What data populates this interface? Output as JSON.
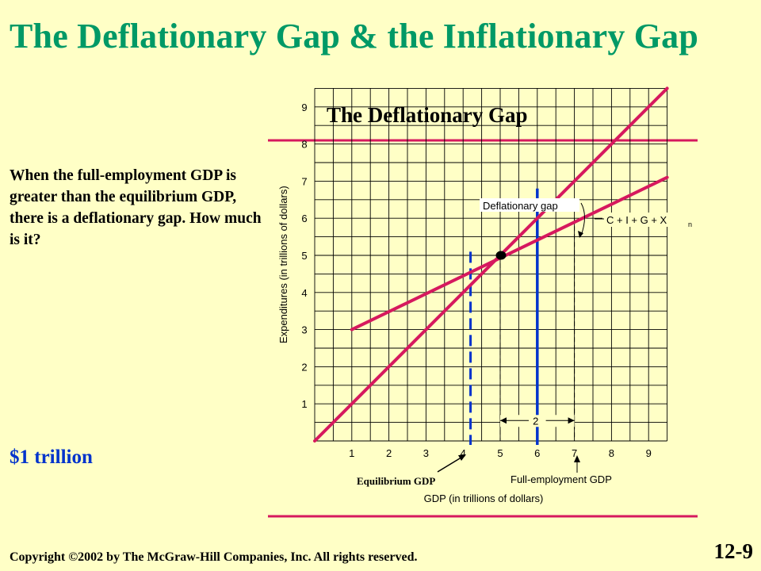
{
  "slide": {
    "title": "The Deflationary Gap & the Inflationary Gap",
    "paragraph": "When the full-employment GDP is greater than the equilibrium GDP, there is a deflationary gap.  How much is it?",
    "answer": "$1 trillion",
    "copyright": "Copyright ©2002 by The McGraw-Hill Companies, Inc.  All rights reserved.",
    "slide_number": "12-9"
  },
  "colors": {
    "background": "#ffffc6",
    "title": "#009966",
    "magenta_line": "#d6195e",
    "blue": "#0033cc",
    "answer": "#0033cc"
  },
  "chart_data": {
    "type": "line",
    "title": "The Deflationary Gap",
    "xlabel": "GDP  (in trillions of dollars)",
    "ylabel": "Expenditures (in trillions of dollars)",
    "xlim": [
      0,
      9.5
    ],
    "ylim": [
      0,
      9.5
    ],
    "x_ticks": [
      "1",
      "2",
      "3",
      "4",
      "5",
      "6",
      "7",
      "8",
      "9"
    ],
    "y_ticks": [
      "1",
      "2",
      "3",
      "4",
      "5",
      "6",
      "7",
      "8",
      "9"
    ],
    "grid": true,
    "series": [
      {
        "values": [
          [
            0,
            0
          ],
          [
            9.5,
            9.5
          ]
        ]
      },
      {
        "name": "C + I + G + X",
        "subscript": "n",
        "values": [
          [
            1,
            3
          ],
          [
            9.5,
            7.1
          ]
        ]
      }
    ],
    "equilibrium_point": [
      5,
      5
    ],
    "vertical_markers": [
      {
        "label": "Equilibrium GDP",
        "x": 4.2
      },
      {
        "label": "Full-employment GDP",
        "x": 6
      }
    ],
    "dashed_guides": [
      5,
      7
    ],
    "deflationary_gap": {
      "label": "Deflationary gap",
      "x": 7,
      "y_from": 6,
      "y_to": 7
    },
    "span_marker": {
      "label": "2",
      "from": 5,
      "to": 7,
      "y": 0.55
    }
  }
}
